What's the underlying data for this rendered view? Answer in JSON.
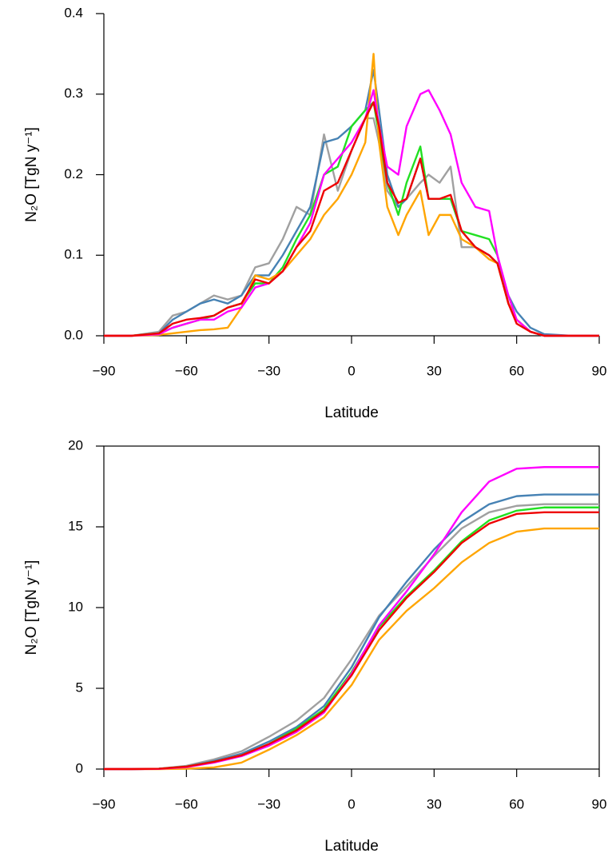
{
  "chart_data": [
    {
      "type": "line",
      "xlabel": "Latitude",
      "ylabel": "N₂O [TgN y⁻¹]",
      "box": false,
      "xlim": [
        -90,
        90
      ],
      "ylim": [
        0,
        0.4
      ],
      "xticks": [
        {
          "value": -90,
          "label": "−90"
        },
        {
          "value": -60,
          "label": "−60"
        },
        {
          "value": -30,
          "label": "−30"
        },
        0,
        30,
        60,
        90
      ],
      "yticks": [
        {
          "value": 0,
          "label": "0.0"
        },
        0.1,
        0.2,
        0.3,
        0.4
      ],
      "x": [
        -90,
        -80,
        -70,
        -65,
        -60,
        -55,
        -50,
        -45,
        -40,
        -35,
        -30,
        -25,
        -20,
        -15,
        -10,
        -5,
        0,
        5,
        8,
        10,
        13,
        17,
        20,
        25,
        28,
        32,
        36,
        40,
        45,
        50,
        53,
        57,
        60,
        65,
        70,
        80,
        90
      ],
      "series": [
        {
          "color": "#a0a0a0",
          "values": [
            0,
            0,
            0.005,
            0.025,
            0.03,
            0.04,
            0.05,
            0.045,
            0.05,
            0.085,
            0.09,
            0.12,
            0.16,
            0.15,
            0.25,
            0.18,
            0.23,
            0.27,
            0.27,
            0.24,
            0.18,
            0.16,
            0.17,
            0.19,
            0.2,
            0.19,
            0.21,
            0.11,
            0.11,
            0.1,
            0.09,
            0.04,
            0.02,
            0.005,
            0,
            0,
            0
          ]
        },
        {
          "color": "#4682b4",
          "values": [
            0,
            0,
            0.003,
            0.02,
            0.03,
            0.04,
            0.045,
            0.04,
            0.05,
            0.075,
            0.075,
            0.1,
            0.13,
            0.16,
            0.24,
            0.245,
            0.26,
            0.28,
            0.33,
            0.28,
            0.2,
            0.16,
            0.17,
            0.22,
            0.17,
            0.17,
            0.17,
            0.13,
            0.11,
            0.1,
            0.09,
            0.05,
            0.03,
            0.01,
            0.002,
            0,
            0
          ]
        },
        {
          "color": "#22e022",
          "values": [
            0,
            0,
            0.003,
            0.01,
            0.015,
            0.02,
            0.025,
            0.035,
            0.04,
            0.065,
            0.065,
            0.085,
            0.12,
            0.15,
            0.2,
            0.21,
            0.26,
            0.28,
            0.29,
            0.25,
            0.19,
            0.15,
            0.19,
            0.235,
            0.17,
            0.17,
            0.17,
            0.13,
            0.125,
            0.12,
            0.1,
            0.04,
            0.02,
            0.005,
            0,
            0,
            0
          ]
        },
        {
          "color": "#ffa500",
          "values": [
            0,
            0,
            0.001,
            0.003,
            0.005,
            0.007,
            0.008,
            0.01,
            0.035,
            0.075,
            0.07,
            0.08,
            0.1,
            0.12,
            0.15,
            0.17,
            0.2,
            0.24,
            0.35,
            0.24,
            0.16,
            0.125,
            0.15,
            0.18,
            0.125,
            0.15,
            0.15,
            0.12,
            0.11,
            0.095,
            0.09,
            0.04,
            0.02,
            0.005,
            0,
            0,
            0
          ]
        },
        {
          "color": "#ff00ff",
          "values": [
            0,
            0,
            0.002,
            0.01,
            0.015,
            0.02,
            0.02,
            0.03,
            0.035,
            0.06,
            0.065,
            0.08,
            0.11,
            0.14,
            0.2,
            0.22,
            0.24,
            0.27,
            0.305,
            0.26,
            0.21,
            0.2,
            0.26,
            0.3,
            0.305,
            0.28,
            0.25,
            0.19,
            0.16,
            0.155,
            0.1,
            0.05,
            0.02,
            0.005,
            0,
            0,
            0
          ]
        },
        {
          "color": "#ee0000",
          "values": [
            0,
            0,
            0.003,
            0.015,
            0.02,
            0.022,
            0.025,
            0.035,
            0.04,
            0.07,
            0.065,
            0.08,
            0.11,
            0.13,
            0.18,
            0.19,
            0.23,
            0.27,
            0.29,
            0.26,
            0.19,
            0.165,
            0.17,
            0.22,
            0.17,
            0.17,
            0.175,
            0.13,
            0.11,
            0.1,
            0.09,
            0.04,
            0.015,
            0.005,
            0,
            0,
            0
          ]
        }
      ]
    },
    {
      "type": "line",
      "xlabel": "Latitude",
      "ylabel": "N₂O [TgN y⁻¹]",
      "box": true,
      "xlim": [
        -90,
        90
      ],
      "ylim": [
        0,
        20
      ],
      "xticks": [
        {
          "value": -90,
          "label": "−90"
        },
        {
          "value": -60,
          "label": "−60"
        },
        {
          "value": -30,
          "label": "−30"
        },
        0,
        30,
        60,
        90
      ],
      "yticks": [
        0,
        5,
        10,
        15,
        20
      ],
      "x": [
        -90,
        -80,
        -70,
        -60,
        -50,
        -40,
        -30,
        -20,
        -10,
        0,
        10,
        20,
        30,
        40,
        50,
        60,
        70,
        80,
        90
      ],
      "series": [
        {
          "color": "#a0a0a0",
          "values": [
            0,
            0,
            0.02,
            0.2,
            0.6,
            1.1,
            2.0,
            3.0,
            4.4,
            6.8,
            9.5,
            11.3,
            13.2,
            14.9,
            15.9,
            16.3,
            16.4,
            16.4,
            16.4
          ]
        },
        {
          "color": "#4682b4",
          "values": [
            0,
            0,
            0.02,
            0.15,
            0.5,
            0.95,
            1.7,
            2.6,
            3.9,
            6.3,
            9.4,
            11.6,
            13.6,
            15.3,
            16.4,
            16.9,
            17.0,
            17.0,
            17.0
          ]
        },
        {
          "color": "#22e022",
          "values": [
            0,
            0,
            0.02,
            0.15,
            0.45,
            0.85,
            1.55,
            2.5,
            3.7,
            6.0,
            8.8,
            10.7,
            12.3,
            14.1,
            15.4,
            16.0,
            16.2,
            16.2,
            16.2
          ]
        },
        {
          "color": "#ffa500",
          "values": [
            0,
            0,
            0,
            0.02,
            0.1,
            0.4,
            1.2,
            2.1,
            3.2,
            5.2,
            8.0,
            9.8,
            11.2,
            12.8,
            14.0,
            14.7,
            14.9,
            14.9,
            14.9
          ]
        },
        {
          "color": "#ff00ff",
          "values": [
            0,
            0,
            0.01,
            0.12,
            0.4,
            0.8,
            1.45,
            2.3,
            3.5,
            5.9,
            8.9,
            11.0,
            13.3,
            15.9,
            17.8,
            18.6,
            18.7,
            18.7,
            18.7
          ]
        },
        {
          "color": "#ee0000",
          "values": [
            0,
            0,
            0.02,
            0.15,
            0.45,
            0.85,
            1.55,
            2.4,
            3.6,
            5.8,
            8.6,
            10.6,
            12.2,
            14.0,
            15.2,
            15.8,
            15.9,
            15.9,
            15.9
          ]
        }
      ]
    }
  ]
}
